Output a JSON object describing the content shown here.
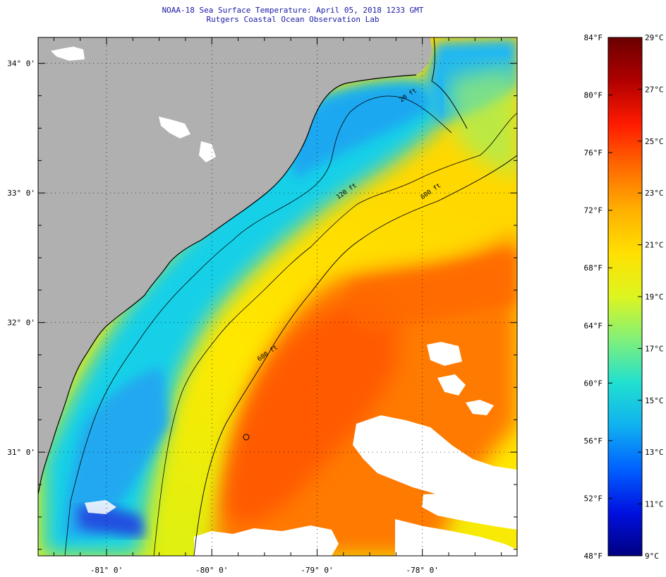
{
  "title": {
    "line1": "NOAA-18 Sea Surface Temperature:  April 05, 2018 1233 GMT",
    "line2": "Rutgers Coastal Ocean Observation Lab"
  },
  "map": {
    "lat_range": [
      30.2,
      34.2
    ],
    "lon_range": [
      -81.65,
      -77.1
    ],
    "lat_labels": [
      {
        "value": 34,
        "text": "34° 0'"
      },
      {
        "value": 33,
        "text": "33° 0'"
      },
      {
        "value": 32,
        "text": "32° 0'"
      },
      {
        "value": 31,
        "text": "31° 0'"
      }
    ],
    "lon_labels": [
      {
        "value": -81,
        "text": "-81° 0'"
      },
      {
        "value": -80,
        "text": "-80° 0'"
      },
      {
        "value": -79,
        "text": "-79° 0'"
      },
      {
        "value": -78,
        "text": "-78° 0'"
      }
    ],
    "contour_labels": [
      {
        "text": "20 ft",
        "lon": -78.2,
        "lat": 33.7
      },
      {
        "text": "120 ft",
        "lon": -78.8,
        "lat": 32.95
      },
      {
        "text": "600 ft",
        "lon": -78.0,
        "lat": 32.95
      },
      {
        "text": "600 ft",
        "lon": -79.55,
        "lat": 31.7
      }
    ],
    "colors": {
      "land": "#b0b0b0",
      "cloud": "#ffffff",
      "grid": "#000000"
    }
  },
  "colorbar": {
    "f_labels": [
      "84°F",
      "80°F",
      "76°F",
      "72°F",
      "68°F",
      "64°F",
      "60°F",
      "56°F",
      "52°F",
      "48°F"
    ],
    "c_labels": [
      "29°C",
      "27°C",
      "25°C",
      "23°C",
      "21°C",
      "19°C",
      "17°C",
      "15°C",
      "13°C",
      "11°C",
      "9°C"
    ],
    "stops": [
      "#6b0000",
      "#b00000",
      "#ff1a00",
      "#ff6a00",
      "#ffb000",
      "#ffe000",
      "#ddf520",
      "#80f07a",
      "#20e0d0",
      "#10b0f0",
      "#0060ff",
      "#0010e0",
      "#000080"
    ]
  }
}
